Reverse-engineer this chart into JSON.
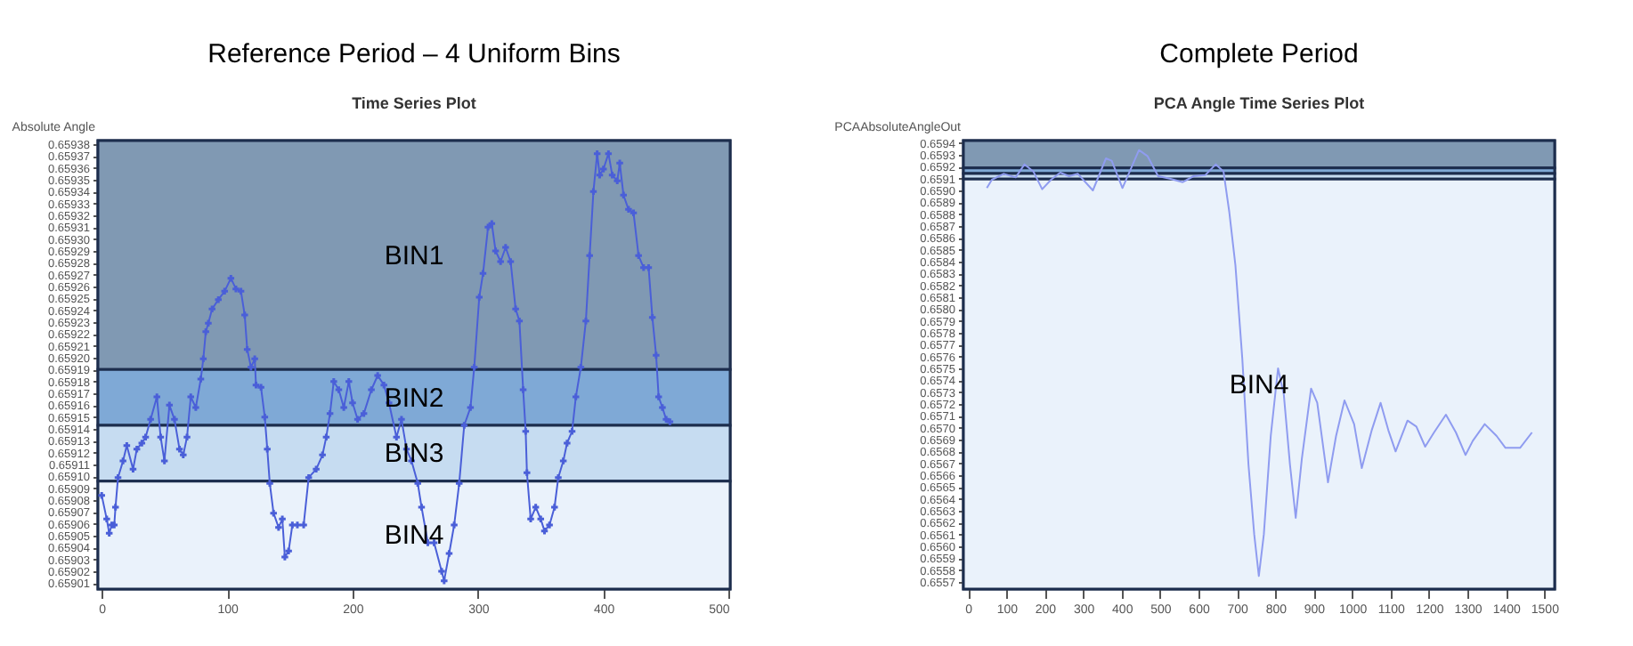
{
  "chart_data": [
    {
      "type": "line",
      "title": "Reference Period – 4 Uniform Bins",
      "subtitle": "Time Series Plot",
      "ylabel": "Absolute Angle",
      "color": "#4a5fd8",
      "marker": "cross",
      "x": [
        0,
        4,
        6,
        8,
        10,
        11,
        13,
        17,
        20,
        25,
        28,
        32,
        35,
        39,
        44,
        47,
        50,
        54,
        58,
        62,
        65,
        68,
        71,
        75,
        79,
        81,
        83,
        85,
        88,
        93,
        98,
        103,
        107,
        111,
        114,
        116,
        119,
        122,
        123,
        127,
        130,
        132,
        134,
        137,
        141,
        144,
        146,
        149,
        152,
        156,
        161,
        165,
        171,
        176,
        179,
        182,
        185,
        189,
        193,
        197,
        200,
        204,
        209,
        215,
        220,
        225,
        229,
        235,
        239,
        243,
        247,
        252,
        255,
        260,
        265,
        271,
        273,
        277,
        281,
        285,
        289,
        294,
        297,
        301,
        304,
        308,
        311,
        314,
        318,
        322,
        326,
        330,
        333,
        336,
        338,
        339,
        342,
        346,
        350,
        353,
        357,
        361,
        364,
        368,
        371,
        375,
        378,
        382,
        386,
        389,
        392,
        395,
        397,
        400,
        404,
        407,
        411,
        413,
        416,
        420,
        424,
        428,
        432,
        436,
        439,
        442,
        444,
        447,
        450,
        453
      ],
      "values": [
        0.659084,
        0.659064,
        0.659052,
        0.659059,
        0.659059,
        0.659074,
        0.659099,
        0.659113,
        0.659126,
        0.659106,
        0.659123,
        0.659128,
        0.659133,
        0.659148,
        0.659167,
        0.659133,
        0.659113,
        0.65916,
        0.659148,
        0.659123,
        0.659118,
        0.659133,
        0.659167,
        0.659158,
        0.659182,
        0.659199,
        0.659222,
        0.659229,
        0.659241,
        0.659249,
        0.659256,
        0.659267,
        0.659258,
        0.659256,
        0.659236,
        0.659207,
        0.659192,
        0.659199,
        0.659177,
        0.659175,
        0.65915,
        0.659123,
        0.659094,
        0.659069,
        0.659057,
        0.659064,
        0.659032,
        0.659037,
        0.659059,
        0.659059,
        0.659059,
        0.659099,
        0.659106,
        0.659118,
        0.659133,
        0.659153,
        0.65918,
        0.659173,
        0.659158,
        0.65918,
        0.659162,
        0.659148,
        0.659153,
        0.659173,
        0.659185,
        0.659177,
        0.659162,
        0.659133,
        0.659148,
        0.659123,
        0.659113,
        0.659094,
        0.659074,
        0.659044,
        0.659044,
        0.65902,
        0.659012,
        0.659035,
        0.659059,
        0.659094,
        0.659143,
        0.659158,
        0.659192,
        0.659251,
        0.659271,
        0.65931,
        0.659313,
        0.65929,
        0.659281,
        0.659293,
        0.659281,
        0.659241,
        0.659231,
        0.659173,
        0.659138,
        0.659103,
        0.659064,
        0.659074,
        0.659064,
        0.659054,
        0.659059,
        0.659074,
        0.659099,
        0.659113,
        0.659128,
        0.659138,
        0.659167,
        0.659192,
        0.659231,
        0.659286,
        0.65934,
        0.659372,
        0.659354,
        0.659359,
        0.659372,
        0.659354,
        0.659349,
        0.659364,
        0.659337,
        0.659325,
        0.659322,
        0.659286,
        0.659276,
        0.659276,
        0.659234,
        0.659202,
        0.659167,
        0.659158,
        0.659148,
        0.659146
      ],
      "xlim": [
        -3,
        501
      ],
      "ylim": [
        0.659005,
        0.659383
      ],
      "xticks": [
        0,
        100,
        200,
        300,
        400,
        500
      ],
      "yticks": [
        0.65901,
        0.65902,
        0.65903,
        0.65904,
        0.65905,
        0.65906,
        0.65907,
        0.65908,
        0.65909,
        {
          "value": 0.6591,
          "label": "0.65910"
        },
        0.65911,
        0.65912,
        0.65913,
        0.65914,
        0.65915,
        0.65916,
        0.65917,
        0.65918,
        0.65919,
        {
          "value": 0.6592,
          "label": "0.65920"
        },
        0.65921,
        0.65922,
        0.65923,
        0.65924,
        0.65925,
        0.65926,
        0.65927,
        0.65928,
        0.65929,
        {
          "value": 0.6593,
          "label": "0.65930"
        },
        0.65931,
        0.65932,
        0.65933,
        0.65934,
        0.65935,
        0.65936,
        0.65937,
        0.65938
      ],
      "bands": [
        {
          "axis": "y",
          "from": 0.65919,
          "to": 0.659383,
          "label": "BIN1",
          "color": "#8099b3"
        },
        {
          "axis": "y",
          "from": 0.659143,
          "to": 0.65919,
          "label": "BIN2",
          "color": "#7fa9d6"
        },
        {
          "axis": "y",
          "from": 0.659096,
          "to": 0.659143,
          "label": "BIN3",
          "color": "#c6dcf1"
        },
        {
          "axis": "y",
          "from": 0.659005,
          "to": 0.659096,
          "label": "BIN4",
          "color": "#eaf2fb"
        }
      ]
    },
    {
      "type": "line",
      "title": "Complete Period",
      "subtitle": "PCA Angle Time Series Plot",
      "ylabel": "PCAAbsoluteAngleOut",
      "color": "#8f9cf0",
      "x": [
        49,
        62,
        93,
        124,
        147,
        170,
        193,
        216,
        240,
        263,
        286,
        325,
        359,
        374,
        402,
        445,
        467,
        495,
        525,
        559,
        587,
        618,
        645,
        665,
        680,
        696,
        714,
        730,
        745,
        757,
        770,
        788,
        807,
        822,
        838,
        853,
        869,
        893,
        909,
        937,
        958,
        980,
        1005,
        1025,
        1051,
        1074,
        1094,
        1113,
        1144,
        1167,
        1190,
        1213,
        1244,
        1270,
        1295,
        1314,
        1345,
        1376,
        1399,
        1437,
        1468
      ],
      "values": [
        0.65902,
        0.65909,
        0.65914,
        0.65911,
        0.65922,
        0.65916,
        0.65901,
        0.65909,
        0.65915,
        0.65912,
        0.65914,
        0.659,
        0.65927,
        0.65925,
        0.65902,
        0.65934,
        0.65929,
        0.65912,
        0.6591,
        0.65907,
        0.65912,
        0.65913,
        0.65922,
        0.65916,
        0.65882,
        0.65837,
        0.65758,
        0.65669,
        0.6561,
        0.65575,
        0.6561,
        0.65693,
        0.6575,
        0.65728,
        0.65669,
        0.65624,
        0.65674,
        0.65733,
        0.65721,
        0.65654,
        0.65693,
        0.65723,
        0.65703,
        0.65666,
        0.65698,
        0.65721,
        0.65698,
        0.6568,
        0.65706,
        0.65701,
        0.65684,
        0.65696,
        0.65711,
        0.65696,
        0.65677,
        0.65689,
        0.65703,
        0.65693,
        0.65683,
        0.65683,
        0.65696
      ],
      "xlim": [
        -12,
        1527
      ],
      "ylim": [
        0.65564,
        0.65942
      ],
      "xticks": [
        0,
        100,
        200,
        300,
        400,
        500,
        600,
        700,
        800,
        900,
        1000,
        1100,
        1200,
        1300,
        1400,
        1500
      ],
      "yticks": [
        0.6557,
        0.6558,
        0.6559,
        {
          "value": 0.656,
          "label": "0.6560"
        },
        0.6561,
        0.6562,
        0.6563,
        0.6564,
        0.6565,
        0.6566,
        0.6567,
        0.6568,
        0.6569,
        {
          "value": 0.657,
          "label": "0.6570"
        },
        0.6571,
        0.6572,
        0.6573,
        0.6574,
        0.6575,
        0.6576,
        0.6577,
        0.6578,
        0.6579,
        {
          "value": 0.658,
          "label": "0.6580"
        },
        0.6581,
        0.6582,
        0.6583,
        0.6584,
        0.6585,
        0.6586,
        0.6587,
        0.6588,
        0.6589,
        {
          "value": 0.659,
          "label": "0.6590"
        },
        0.6591,
        0.6592,
        0.6593,
        0.6594
      ],
      "bands": [
        {
          "axis": "y",
          "from": 0.65919,
          "to": 0.65942,
          "color": "#8099b3"
        },
        {
          "axis": "y",
          "from": 0.659143,
          "to": 0.65919,
          "color": "#7fa9d6"
        },
        {
          "axis": "y",
          "from": 0.659096,
          "to": 0.659143,
          "color": "#c6dcf1"
        },
        {
          "axis": "y",
          "from": 0.65564,
          "to": 0.659096,
          "label": "BIN4",
          "color": "#eaf2fb"
        }
      ]
    }
  ]
}
